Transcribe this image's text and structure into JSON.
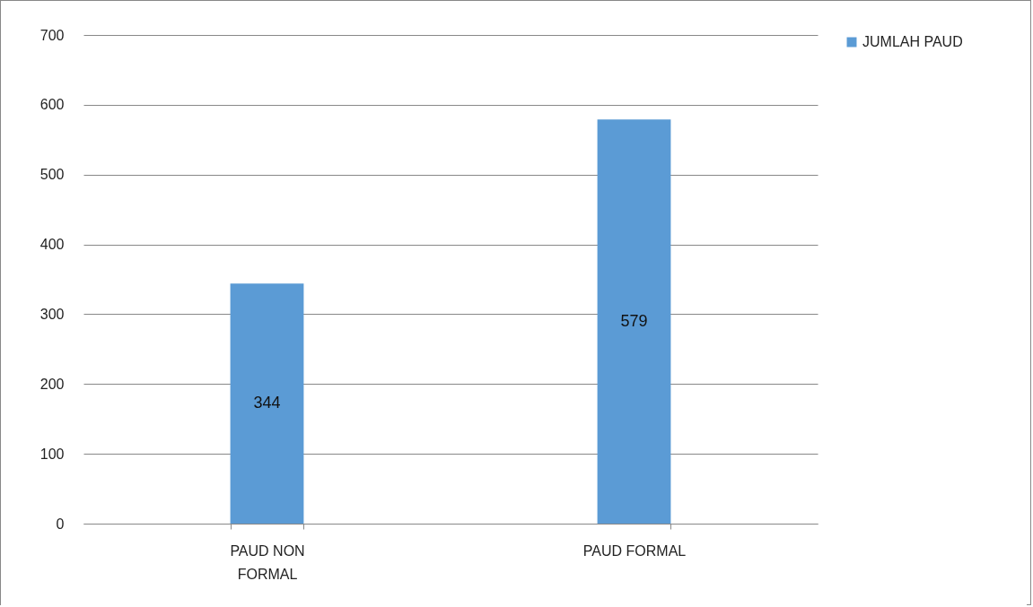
{
  "chart_data": {
    "type": "bar",
    "categories": [
      "PAUD NON FORMAL",
      "PAUD FORMAL"
    ],
    "series": [
      {
        "name": "JUMLAH PAUD",
        "color": "#5b9bd5",
        "values": [
          344,
          579
        ]
      }
    ],
    "ylim": [
      0,
      700
    ],
    "yticks": [
      0,
      100,
      200,
      300,
      400,
      500,
      600,
      700
    ],
    "grid": "y",
    "legend": "right",
    "data_labels": true
  }
}
